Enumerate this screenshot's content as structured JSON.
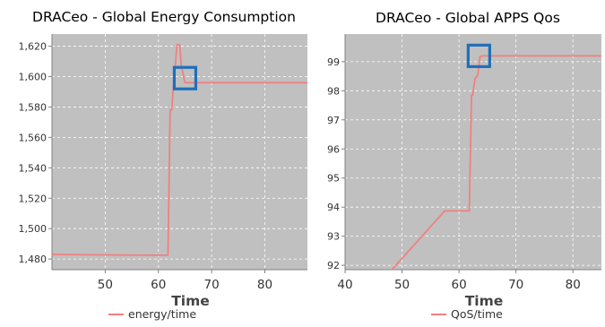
{
  "chart_data": [
    {
      "type": "line",
      "title": "DRACeo - Global Energy Consumption",
      "xlabel": "Time",
      "ylabel": "",
      "xlim": [
        40,
        88
      ],
      "ylim": [
        1473,
        1628
      ],
      "xticks": [
        50,
        60,
        70,
        80
      ],
      "yticks": [
        1480,
        1500,
        1520,
        1540,
        1560,
        1580,
        1600,
        1620
      ],
      "ytick_labels": [
        "1,480",
        "1,500",
        "1,520",
        "1,540",
        "1,560",
        "1,580",
        "1,600",
        "1,620"
      ],
      "grid": true,
      "legend_position": "bottom",
      "background": "#c0c0c0",
      "series": [
        {
          "name": "energy/time",
          "color": "#f08080",
          "x": [
            40,
            58,
            61.8,
            62.2,
            62.5,
            62.8,
            63.5,
            64,
            64.3,
            65,
            66,
            70,
            88
          ],
          "y": [
            1483,
            1482.5,
            1482.5,
            1578,
            1578,
            1593,
            1621,
            1621,
            1607,
            1596,
            1596,
            1596,
            1596
          ]
        }
      ],
      "highlight": {
        "x": 65,
        "y": 1599,
        "color": "#1f6fba"
      }
    },
    {
      "type": "line",
      "title": "DRACeo - Global APPS Qos",
      "xlabel": "Time",
      "ylabel": "",
      "xlim": [
        40,
        85
      ],
      "ylim": [
        91.85,
        99.95
      ],
      "xticks": [
        40,
        50,
        60,
        70,
        80
      ],
      "yticks": [
        92,
        93,
        94,
        95,
        96,
        97,
        98,
        99
      ],
      "ytick_labels": [
        "92",
        "93",
        "94",
        "95",
        "96",
        "97",
        "98",
        "99"
      ],
      "grid": true,
      "legend_position": "bottom",
      "background": "#c0c0c0",
      "series": [
        {
          "name": "QoS/time",
          "color": "#f08080",
          "x": [
            48,
            57.5,
            61.8,
            62.2,
            62.4,
            62.8,
            63.3,
            63.7,
            64,
            70,
            85
          ],
          "y": [
            91.8,
            93.87,
            93.87,
            97.85,
            97.85,
            98.4,
            98.55,
            99.18,
            99.2,
            99.2,
            99.2
          ]
        }
      ],
      "highlight": {
        "x": 63.5,
        "y": 99.2,
        "color": "#1f6fba"
      }
    }
  ]
}
